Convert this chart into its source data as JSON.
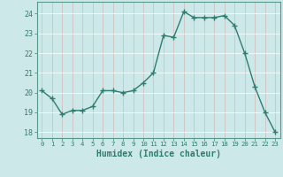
{
  "x": [
    0,
    1,
    2,
    3,
    4,
    5,
    6,
    7,
    8,
    9,
    10,
    11,
    12,
    13,
    14,
    15,
    16,
    17,
    18,
    19,
    20,
    21,
    22,
    23
  ],
  "y": [
    20.1,
    19.7,
    18.9,
    19.1,
    19.1,
    19.3,
    20.1,
    20.1,
    20.0,
    20.1,
    20.5,
    21.0,
    22.9,
    22.8,
    24.1,
    23.8,
    23.8,
    23.8,
    23.9,
    23.4,
    22.0,
    20.3,
    19.0,
    18.0
  ],
  "xlabel": "Humidex (Indice chaleur)",
  "xlim": [
    -0.5,
    23.5
  ],
  "ylim": [
    17.7,
    24.6
  ],
  "yticks": [
    18,
    19,
    20,
    21,
    22,
    23,
    24
  ],
  "xticks": [
    0,
    1,
    2,
    3,
    4,
    5,
    6,
    7,
    8,
    9,
    10,
    11,
    12,
    13,
    14,
    15,
    16,
    17,
    18,
    19,
    20,
    21,
    22,
    23
  ],
  "line_color": "#2e7d6e",
  "marker": "+",
  "bg_color": "#cce8e8",
  "grid_color": "#aad4d4",
  "spine_color": "#5a9a8a"
}
